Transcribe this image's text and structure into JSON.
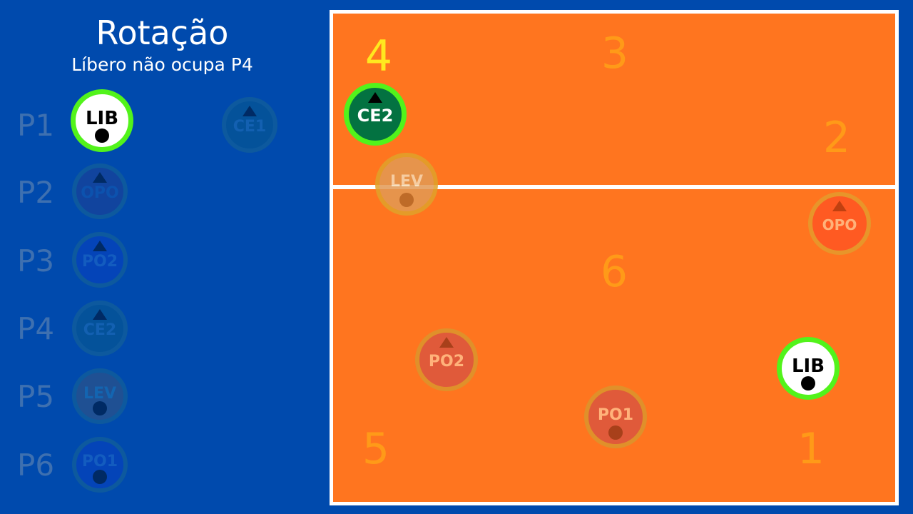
{
  "header": {
    "title": "Rotação",
    "subtitle": "Líbero não ocupa P4"
  },
  "rotation_list": [
    {
      "position": "P1",
      "player": "LIB",
      "highlighted": true
    },
    {
      "position": "P2",
      "player": "OPO",
      "highlighted": false
    },
    {
      "position": "P3",
      "player": "PO2",
      "highlighted": false
    },
    {
      "position": "P4",
      "player": "CE2",
      "highlighted": false
    },
    {
      "position": "P5",
      "player": "LEV",
      "highlighted": false
    },
    {
      "position": "P6",
      "player": "PO1",
      "highlighted": false
    }
  ],
  "bench": {
    "player": "CE1"
  },
  "court": {
    "zones": [
      "1",
      "2",
      "3",
      "4",
      "5",
      "6"
    ],
    "active_zone": "4",
    "players": [
      {
        "player": "CE2",
        "zone": "4",
        "highlighted": true
      },
      {
        "player": "LEV",
        "highlighted": false
      },
      {
        "player": "OPO",
        "highlighted": false
      },
      {
        "player": "PO2",
        "highlighted": false
      },
      {
        "player": "PO1",
        "highlighted": false
      },
      {
        "player": "LIB",
        "highlighted": true
      }
    ]
  },
  "colors": {
    "background": "#004aad",
    "court": "#ff751f",
    "court_lines": "#ffffff",
    "zone_number": "#ff9a18",
    "active_zone_number": "#ffe81f",
    "highlight_ring": "#52f31b",
    "middle_blocker": "#037241",
    "libero": "#ffffff"
  }
}
